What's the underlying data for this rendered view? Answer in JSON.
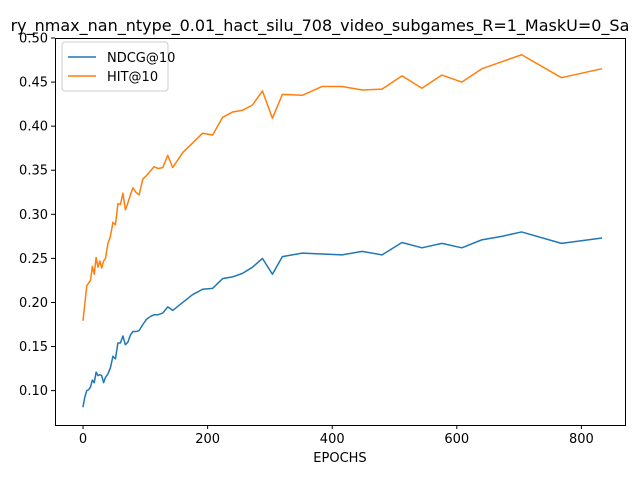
{
  "chart_data": {
    "type": "line",
    "title": "ry_nmax_nan_ntype_0.01_hact_silu_708_video_subgames_R=1_MaskU=0_Sa",
    "xlabel": "EPOCHS",
    "ylabel": "",
    "xlim": [
      -45,
      870
    ],
    "ylim": [
      0.061,
      0.5
    ],
    "xticks": [
      0,
      200,
      400,
      600,
      800
    ],
    "yticks": [
      0.1,
      0.15,
      0.2,
      0.25,
      0.3,
      0.35,
      0.4,
      0.45,
      0.5
    ],
    "xtick_labels": [
      "0",
      "200",
      "400",
      "600",
      "800"
    ],
    "ytick_labels": [
      "0.10",
      "0.15",
      "0.20",
      "0.25",
      "0.30",
      "0.35",
      "0.40",
      "0.45",
      "0.50"
    ],
    "grid": false,
    "legend_position": "top-left",
    "series": [
      {
        "name": "NDCG@10",
        "color": "#1f77b4",
        "x": [
          0,
          3,
          6,
          9,
          12,
          15,
          18,
          21,
          24,
          27,
          30,
          33,
          36,
          40,
          44,
          48,
          52,
          56,
          60,
          64,
          68,
          72,
          76,
          80,
          85,
          90,
          96,
          102,
          108,
          114,
          120,
          128,
          136,
          144,
          160,
          176,
          192,
          208,
          224,
          240,
          256,
          272,
          288,
          304,
          320,
          352,
          384,
          416,
          448,
          480,
          512,
          544,
          576,
          608,
          640,
          672,
          704,
          768,
          832
        ],
        "y": [
          0.082,
          0.093,
          0.1,
          0.101,
          0.104,
          0.112,
          0.109,
          0.121,
          0.117,
          0.118,
          0.117,
          0.109,
          0.115,
          0.119,
          0.126,
          0.139,
          0.136,
          0.154,
          0.154,
          0.162,
          0.152,
          0.155,
          0.163,
          0.167,
          0.167,
          0.168,
          0.175,
          0.181,
          0.184,
          0.186,
          0.186,
          0.188,
          0.195,
          0.191,
          0.2,
          0.209,
          0.215,
          0.216,
          0.227,
          0.229,
          0.233,
          0.24,
          0.25,
          0.232,
          0.252,
          0.256,
          0.255,
          0.254,
          0.258,
          0.254,
          0.268,
          0.262,
          0.267,
          0.262,
          0.271,
          0.275,
          0.28,
          0.267,
          0.273
        ]
      },
      {
        "name": "HIT@10",
        "color": "#ff7f0e",
        "x": [
          0,
          3,
          6,
          9,
          12,
          15,
          18,
          21,
          24,
          27,
          30,
          33,
          36,
          40,
          44,
          48,
          52,
          56,
          60,
          64,
          68,
          72,
          76,
          80,
          85,
          90,
          96,
          102,
          108,
          114,
          120,
          128,
          136,
          144,
          160,
          176,
          192,
          208,
          224,
          240,
          256,
          272,
          288,
          304,
          320,
          352,
          384,
          416,
          448,
          480,
          512,
          544,
          576,
          608,
          640,
          672,
          704,
          768,
          832
        ],
        "y": [
          0.18,
          0.199,
          0.219,
          0.222,
          0.225,
          0.241,
          0.232,
          0.251,
          0.24,
          0.247,
          0.239,
          0.247,
          0.25,
          0.267,
          0.275,
          0.291,
          0.288,
          0.312,
          0.311,
          0.324,
          0.305,
          0.313,
          0.322,
          0.33,
          0.325,
          0.322,
          0.34,
          0.344,
          0.349,
          0.354,
          0.352,
          0.353,
          0.367,
          0.353,
          0.37,
          0.381,
          0.392,
          0.39,
          0.41,
          0.416,
          0.418,
          0.424,
          0.44,
          0.409,
          0.436,
          0.435,
          0.445,
          0.445,
          0.441,
          0.442,
          0.457,
          0.443,
          0.458,
          0.45,
          0.465,
          0.473,
          0.481,
          0.455,
          0.465
        ]
      }
    ]
  }
}
